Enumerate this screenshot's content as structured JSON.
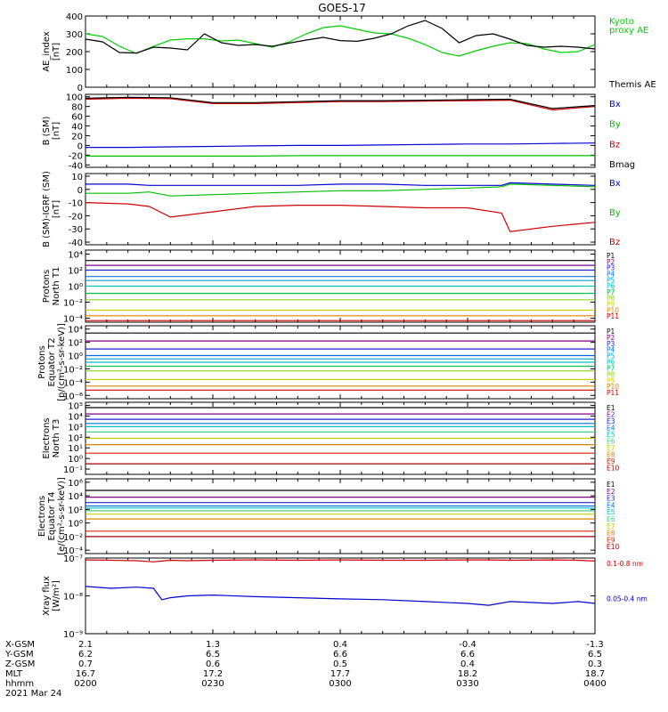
{
  "title": "GOES-17",
  "footer": {
    "row_labels": [
      "X-GSM",
      "Y-GSM",
      "Z-GSM",
      "MLT",
      "hhmm"
    ],
    "date": "2021 Mar 24",
    "columns": [
      [
        "2.1",
        "6.2",
        "0.7",
        "16.7",
        "0200"
      ],
      [
        "1.3",
        "6.5",
        "0.6",
        "17.2",
        "0230"
      ],
      [
        "0.4",
        "6.6",
        "0.5",
        "17.7",
        "0300"
      ],
      [
        "-0.4",
        "6.6",
        "0.4",
        "18.2",
        "0330"
      ],
      [
        "-1.3",
        "6.5",
        "0.3",
        "18.7",
        "0400"
      ]
    ]
  },
  "chart_data": [
    {
      "type": "line",
      "ylabel": [
        "AE_index",
        "[nT]"
      ],
      "ylim": [
        0,
        400
      ],
      "yticks": [
        {
          "v": 0,
          "l": "0"
        },
        {
          "v": 100,
          "l": "100"
        },
        {
          "v": 200,
          "l": "200"
        },
        {
          "v": 300,
          "l": "300"
        },
        {
          "v": 400,
          "l": "400"
        }
      ],
      "x": [
        0,
        4,
        8,
        12,
        16,
        20,
        24,
        28,
        32,
        36,
        40,
        44,
        48,
        52,
        56,
        60,
        64,
        68,
        72,
        76,
        80,
        84,
        88,
        92,
        96,
        100,
        104,
        108,
        112,
        116,
        120
      ],
      "series": [
        {
          "name": "Kyoto proxy AE",
          "color": "#00d000",
          "label_lines": [
            "Kyoto",
            "proxy AE"
          ],
          "values": [
            300,
            285,
            230,
            190,
            230,
            265,
            272,
            272,
            260,
            265,
            245,
            225,
            255,
            300,
            335,
            345,
            325,
            305,
            300,
            275,
            240,
            195,
            175,
            205,
            230,
            250,
            245,
            215,
            195,
            200,
            240
          ]
        },
        {
          "name": "Themis AE",
          "color": "#000000",
          "label_lines": [
            "Themis AE"
          ],
          "values": [
            270,
            255,
            195,
            192,
            225,
            220,
            210,
            300,
            250,
            235,
            240,
            230,
            248,
            265,
            280,
            262,
            258,
            275,
            300,
            345,
            375,
            330,
            250,
            290,
            300,
            270,
            235,
            225,
            230,
            225,
            215
          ]
        }
      ]
    },
    {
      "type": "line",
      "ylabel": [
        "B (SM)",
        "[nT]"
      ],
      "ylim": [
        -45,
        105
      ],
      "yticks": [
        {
          "v": -40,
          "l": "-40"
        },
        {
          "v": -20,
          "l": "-20"
        },
        {
          "v": 0,
          "l": "0"
        },
        {
          "v": 20,
          "l": "20"
        },
        {
          "v": 40,
          "l": "40"
        },
        {
          "v": 60,
          "l": "60"
        },
        {
          "v": 80,
          "l": "80"
        },
        {
          "v": 100,
          "l": "100"
        }
      ],
      "x": [
        0,
        10,
        20,
        30,
        40,
        50,
        60,
        70,
        80,
        90,
        100,
        110,
        120
      ],
      "series": [
        {
          "name": "Bx",
          "color": "#0000d0",
          "label_lines": [
            "Bx"
          ],
          "values": [
            -4,
            -4,
            -3,
            -2,
            -1,
            0,
            0,
            1,
            2,
            3,
            3,
            4,
            5
          ]
        },
        {
          "name": "By",
          "color": "#00c000",
          "label_lines": [
            "By"
          ],
          "values": [
            -22,
            -22,
            -22,
            -22,
            -22,
            -21,
            -21,
            -21,
            -21,
            -21,
            -21,
            -21,
            -21
          ]
        },
        {
          "name": "Bz",
          "color": "#d00000",
          "label_lines": [
            "Bz"
          ],
          "values": [
            95,
            97,
            96,
            86,
            86,
            88,
            90,
            90,
            91,
            92,
            93,
            73,
            80
          ]
        },
        {
          "name": "Bmag",
          "color": "#000000",
          "label_lines": [
            "Bmag"
          ],
          "values": [
            97,
            99,
            98,
            88,
            88,
            90,
            92,
            92,
            93,
            94,
            95,
            76,
            82
          ]
        }
      ]
    },
    {
      "type": "line",
      "ylabel": [
        "B (SM)-IGRF (SM)",
        "[nT]"
      ],
      "ylim": [
        -42,
        12
      ],
      "yticks": [
        {
          "v": -40,
          "l": "-40"
        },
        {
          "v": -30,
          "l": "-30"
        },
        {
          "v": -20,
          "l": "-20"
        },
        {
          "v": -10,
          "l": "-10"
        },
        {
          "v": 0,
          "l": "0"
        },
        {
          "v": 10,
          "l": "10"
        }
      ],
      "x": [
        0,
        10,
        15,
        20,
        30,
        40,
        50,
        60,
        70,
        80,
        90,
        98,
        100,
        110,
        120
      ],
      "series": [
        {
          "name": "Bx",
          "color": "#0000d0",
          "label_lines": [
            "Bx"
          ],
          "values": [
            4,
            4,
            3,
            3,
            3,
            3,
            3,
            4,
            4,
            3,
            3,
            3,
            5,
            4,
            3
          ]
        },
        {
          "name": "By",
          "color": "#00c000",
          "label_lines": [
            "By"
          ],
          "values": [
            -3,
            -3,
            -2,
            -5,
            -4,
            -3,
            -2,
            -1,
            -1,
            0,
            1,
            2,
            4,
            3,
            2
          ]
        },
        {
          "name": "Bz",
          "color": "#d00000",
          "label_lines": [
            "Bz"
          ],
          "values": [
            -10,
            -11,
            -13,
            -21,
            -17,
            -13,
            -12,
            -12,
            -13,
            -14,
            -14,
            -18,
            -32,
            -28,
            -25
          ]
        }
      ]
    },
    {
      "type": "line",
      "log": true,
      "ylabel": [
        "Protons",
        "North T1"
      ],
      "ylim": [
        -4.5,
        4.5
      ],
      "yticks": [
        {
          "v": -4,
          "l": "10⁻⁴"
        },
        {
          "v": -2,
          "l": "10⁻²"
        },
        {
          "v": 0,
          "l": "10⁰"
        },
        {
          "v": 2,
          "l": "10²"
        },
        {
          "v": 4,
          "l": "10⁴"
        }
      ],
      "x": [
        0,
        120
      ],
      "series": [
        {
          "name": "P1",
          "color": "#000000",
          "values": [
            3.2,
            3.2
          ]
        },
        {
          "name": "P2",
          "color": "#800080",
          "values": [
            2.6,
            2.6
          ]
        },
        {
          "name": "P3",
          "color": "#2020d0",
          "values": [
            2.0,
            2.0
          ]
        },
        {
          "name": "P4",
          "color": "#0070e0",
          "values": [
            1.2,
            1.2
          ]
        },
        {
          "name": "P5",
          "color": "#00a0d0",
          "values": [
            0.7,
            0.7
          ]
        },
        {
          "name": "P6",
          "color": "#00c0c0",
          "values": [
            0.0,
            0.0
          ]
        },
        {
          "name": "P7",
          "color": "#00c050",
          "values": [
            -0.9,
            -0.9
          ]
        },
        {
          "name": "P8",
          "color": "#90d020",
          "values": [
            -1.7,
            -1.7
          ]
        },
        {
          "name": "P9",
          "color": "#d0d000",
          "values": [
            -3.0,
            -3.0
          ]
        },
        {
          "name": "P10",
          "color": "#e08000",
          "values": [
            -3.7,
            -3.7
          ]
        },
        {
          "name": "P11",
          "color": "#d00000",
          "values": [
            -4.3,
            -4.3
          ]
        }
      ]
    },
    {
      "type": "line",
      "log": true,
      "ylabel": [
        "Protons",
        "Equator T2",
        "[p/(cm²-s-sr-keV)]"
      ],
      "ylim": [
        -6.5,
        4.5
      ],
      "yticks": [
        {
          "v": -6,
          "l": "10⁻⁶"
        },
        {
          "v": -4,
          "l": "10⁻⁴"
        },
        {
          "v": -2,
          "l": "10⁻²"
        },
        {
          "v": 0,
          "l": "10⁰"
        },
        {
          "v": 2,
          "l": "10²"
        },
        {
          "v": 4,
          "l": "10⁴"
        }
      ],
      "x": [
        0,
        120
      ],
      "series": [
        {
          "name": "P1",
          "color": "#000000",
          "values": [
            3.4,
            3.4
          ]
        },
        {
          "name": "P2",
          "color": "#800080",
          "values": [
            2.2,
            2.2
          ]
        },
        {
          "name": "P3",
          "color": "#2020d0",
          "values": [
            1.0,
            1.0
          ]
        },
        {
          "name": "P4",
          "color": "#0070e0",
          "values": [
            0.0,
            0.0
          ]
        },
        {
          "name": "P5",
          "color": "#00a0d0",
          "values": [
            -0.5,
            -0.5
          ]
        },
        {
          "name": "P6",
          "color": "#00c0c0",
          "values": [
            -1.0,
            -1.0
          ]
        },
        {
          "name": "P7",
          "color": "#00c050",
          "values": [
            -1.6,
            -1.6
          ]
        },
        {
          "name": "P8",
          "color": "#90d020",
          "values": [
            -2.3,
            -2.3
          ]
        },
        {
          "name": "P9",
          "color": "#d0d000",
          "values": [
            -3.6,
            -3.6
          ]
        },
        {
          "name": "P10",
          "color": "#e08000",
          "values": [
            -4.6,
            -4.6
          ]
        },
        {
          "name": "P11",
          "color": "#d00000",
          "values": [
            -5.2,
            -5.2
          ]
        }
      ]
    },
    {
      "type": "line",
      "log": true,
      "ylabel": [
        "Electrons",
        "North T3"
      ],
      "ylim": [
        -1.5,
        5.3
      ],
      "yticks": [
        {
          "v": -1,
          "l": "10⁻¹"
        },
        {
          "v": 0,
          "l": "10⁰"
        },
        {
          "v": 1,
          "l": "10¹"
        },
        {
          "v": 2,
          "l": "10²"
        },
        {
          "v": 3,
          "l": "10³"
        },
        {
          "v": 4,
          "l": "10⁴"
        },
        {
          "v": 5,
          "l": "10⁵"
        }
      ],
      "x": [
        0,
        120
      ],
      "series": [
        {
          "name": "E1",
          "color": "#000000",
          "values": [
            4.8,
            4.8
          ]
        },
        {
          "name": "E2",
          "color": "#800080",
          "values": [
            4.2,
            4.2
          ]
        },
        {
          "name": "E3",
          "color": "#2020d0",
          "values": [
            3.7,
            3.7
          ]
        },
        {
          "name": "E4",
          "color": "#0070e0",
          "values": [
            3.3,
            3.3
          ]
        },
        {
          "name": "E5",
          "color": "#00c0c0",
          "values": [
            3.0,
            3.0
          ]
        },
        {
          "name": "E6",
          "color": "#40d080",
          "values": [
            2.5,
            2.5
          ]
        },
        {
          "name": "E7",
          "color": "#c0d000",
          "values": [
            1.9,
            1.9
          ]
        },
        {
          "name": "E8",
          "color": "#e08000",
          "values": [
            1.3,
            1.3
          ]
        },
        {
          "name": "E9",
          "color": "#e02000",
          "values": [
            0.5,
            0.5
          ]
        },
        {
          "name": "E10",
          "color": "#a00000",
          "values": [
            -0.5,
            -0.5
          ]
        }
      ]
    },
    {
      "type": "line",
      "log": true,
      "ylabel": [
        "Electrons",
        "Equator T4",
        "[e/(cm²-s-sr-keV)]"
      ],
      "ylim": [
        -4.5,
        6.5
      ],
      "yticks": [
        {
          "v": -4,
          "l": "10⁻⁴"
        },
        {
          "v": -2,
          "l": "10⁻²"
        },
        {
          "v": 0,
          "l": "10⁰"
        },
        {
          "v": 2,
          "l": "10²"
        },
        {
          "v": 4,
          "l": "10⁴"
        },
        {
          "v": 6,
          "l": "10⁶"
        }
      ],
      "x": [
        0,
        120
      ],
      "series": [
        {
          "name": "E1",
          "color": "#000000",
          "values": [
            4.8,
            4.8
          ]
        },
        {
          "name": "E2",
          "color": "#800080",
          "values": [
            3.8,
            3.8
          ]
        },
        {
          "name": "E3",
          "color": "#2020d0",
          "values": [
            3.0,
            3.0
          ]
        },
        {
          "name": "E4",
          "color": "#0070e0",
          "values": [
            2.5,
            2.5
          ]
        },
        {
          "name": "E5",
          "color": "#00c0c0",
          "values": [
            2.2,
            2.2
          ]
        },
        {
          "name": "E6",
          "color": "#40d080",
          "values": [
            1.8,
            1.8
          ]
        },
        {
          "name": "E7",
          "color": "#c0d000",
          "values": [
            1.3,
            1.3
          ]
        },
        {
          "name": "E8",
          "color": "#e08000",
          "values": [
            0.6,
            0.6
          ]
        },
        {
          "name": "E9",
          "color": "#e02000",
          "values": [
            -1.2,
            -1.2
          ]
        },
        {
          "name": "E10",
          "color": "#a00000",
          "values": [
            -2.0,
            -2.0
          ]
        }
      ]
    },
    {
      "type": "line",
      "log": true,
      "ylabel": [
        "Xray flux",
        "[W/m²]"
      ],
      "ylim": [
        -9,
        -7
      ],
      "yticks": [
        {
          "v": -9,
          "l": "10⁻⁹"
        },
        {
          "v": -8,
          "l": "10⁻⁸"
        },
        {
          "v": -7,
          "l": "10⁻⁷"
        }
      ],
      "x": [
        0,
        6,
        12,
        16,
        18,
        20,
        24,
        30,
        40,
        50,
        60,
        70,
        80,
        90,
        95,
        100,
        110,
        116,
        120
      ],
      "series": [
        {
          "name": "0.1-0.8 nm",
          "color": "#d00000",
          "label_lines": [
            "0.1-0.8 nm"
          ],
          "values": [
            -7.05,
            -7.06,
            -7.07,
            -7.1,
            -7.08,
            -7.06,
            -7.07,
            -7.06,
            -7.05,
            -7.06,
            -7.05,
            -7.06,
            -7.06,
            -7.05,
            -7.05,
            -7.06,
            -7.05,
            -7.06,
            -7.08
          ]
        },
        {
          "name": "0.05-0.4 nm",
          "color": "#0000d0",
          "label_lines": [
            "0.05-0.4 nm"
          ],
          "values": [
            -7.75,
            -7.8,
            -7.77,
            -7.8,
            -8.1,
            -8.05,
            -8.0,
            -7.98,
            -8.02,
            -8.05,
            -8.08,
            -8.1,
            -8.15,
            -8.2,
            -8.25,
            -8.15,
            -8.2,
            -8.15,
            -8.2
          ]
        }
      ]
    }
  ]
}
